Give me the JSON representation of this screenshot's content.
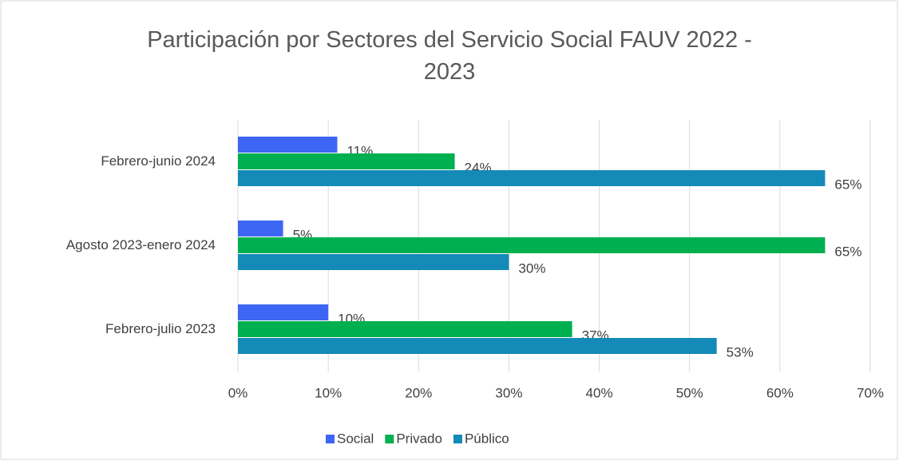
{
  "chart_data": {
    "type": "barh",
    "title": "Participación por Sectores del Servicio Social FAUV 2022 - 2023",
    "categories": [
      "Febrero-junio 2024",
      "Agosto 2023-enero 2024",
      "Febrero-julio 2023"
    ],
    "series": [
      {
        "name": "Social",
        "color": "#3d66f4",
        "values": [
          11,
          5,
          10
        ],
        "value_labels": [
          "11%",
          "5%",
          "10%"
        ]
      },
      {
        "name": "Privado",
        "color": "#00b050",
        "values": [
          24,
          65,
          37
        ],
        "value_labels": [
          "24%",
          "65%",
          "37%"
        ]
      },
      {
        "name": "Público",
        "color": "#138ab7",
        "values": [
          65,
          30,
          53
        ],
        "value_labels": [
          "65%",
          "30%",
          "53%"
        ]
      }
    ],
    "xlim": [
      0,
      70
    ],
    "xticks": [
      {
        "value": 0,
        "label": "0%"
      },
      {
        "value": 10,
        "label": "10%"
      },
      {
        "value": 20,
        "label": "20%"
      },
      {
        "value": 30,
        "label": "30%"
      },
      {
        "value": 40,
        "label": "40%"
      },
      {
        "value": 50,
        "label": "50%"
      },
      {
        "value": 60,
        "label": "60%"
      },
      {
        "value": 70,
        "label": "70%"
      }
    ],
    "grid": true,
    "legend": "bottom"
  }
}
